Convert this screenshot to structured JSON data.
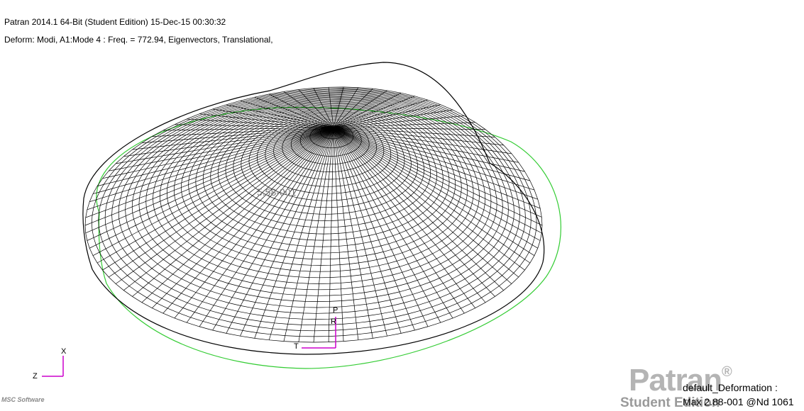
{
  "header": {
    "title": "Patran 2014.1 64-Bit  (Student Edition) 15-Dec-15 00:30:32",
    "deform": "Deform: Modi, A1:Mode 4 : Freq. = 772.94, Eigenvectors, Translational,"
  },
  "viewport": {
    "node_label": "5.58-001",
    "local_axes": {
      "p": "P",
      "r": "R",
      "t": "T"
    },
    "global_axes": {
      "x": "X",
      "z": "Z"
    }
  },
  "legend": {
    "name": "default_Deformation :",
    "max": "Max 2.88-001 @Nd 1061"
  },
  "watermark": {
    "brand": "Patran",
    "reg": "®",
    "edition": "Student Edition",
    "corner": "MSC Software"
  },
  "colors": {
    "mesh": "#000000",
    "undeformed": "#33cc33",
    "axes_local": "#cc00cc",
    "axes_global": "#cc00cc"
  }
}
